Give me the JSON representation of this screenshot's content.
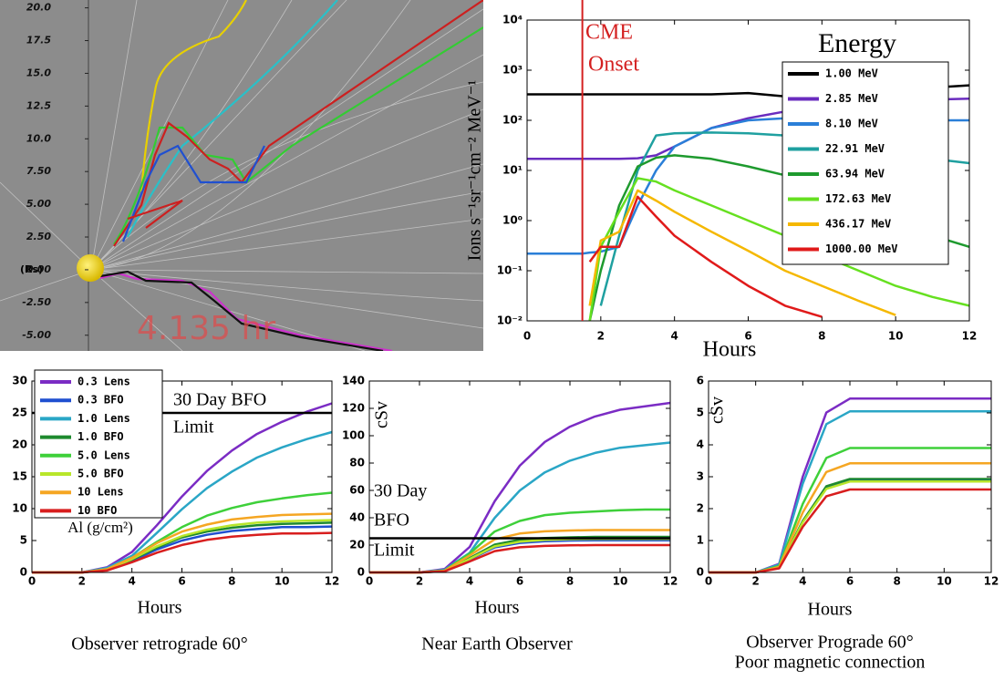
{
  "chart_data": [
    {
      "type": "image",
      "ylabel": "(Rs)",
      "annotation": "4.135 hr",
      "ylim": [
        -6.2,
        20.6
      ],
      "yticks": [
        {
          "value": 20,
          "label": "20.0"
        },
        {
          "value": 17.5,
          "label": "17.5"
        },
        {
          "value": 15,
          "label": "15.0"
        },
        {
          "value": 12.5,
          "label": "12.5"
        },
        {
          "value": 10,
          "label": "10.0"
        },
        {
          "value": 7.5,
          "label": "7.50"
        },
        {
          "value": 5,
          "label": "5.00"
        },
        {
          "value": 2.5,
          "label": "2.50"
        },
        {
          "value": 0,
          "label": "0.00"
        },
        {
          "value": -2.5,
          "label": "-2.50"
        },
        {
          "value": -5,
          "label": "-5.00"
        }
      ]
    },
    {
      "type": "line",
      "log_y": true,
      "xlabel": "Hours",
      "ylabel": "Ions s⁻¹sr⁻¹cm⁻² MeV⁻¹",
      "legend_title": "Energy",
      "legend": "upper right",
      "xlim": [
        0,
        12
      ],
      "xticks": [
        0,
        2,
        4,
        6,
        8,
        10,
        12
      ],
      "ylim": [
        0.01,
        10000
      ],
      "yticks": [
        {
          "value": 0.01,
          "label": "10⁻²"
        },
        {
          "value": 0.1,
          "label": "10⁻¹"
        },
        {
          "value": 1,
          "label": "10⁰"
        },
        {
          "value": 10,
          "label": "10¹"
        },
        {
          "value": 100,
          "label": "10²"
        },
        {
          "value": 1000,
          "label": "10³"
        },
        {
          "value": 10000,
          "label": "10⁴"
        }
      ],
      "vline": {
        "x": 1.5,
        "label": [
          "CME",
          "Onset"
        ],
        "color": "#d42020"
      },
      "x": [
        0,
        1,
        1.5,
        1.7,
        2,
        2.5,
        3,
        3.5,
        4,
        5,
        6,
        7,
        8,
        9,
        10,
        11,
        12
      ],
      "series": [
        {
          "name": "1.00 MeV",
          "color": "#000000",
          "values": [
            330,
            330,
            330,
            330,
            330,
            330,
            330,
            330,
            330,
            330,
            350,
            300,
            320,
            350,
            400,
            450,
            500
          ]
        },
        {
          "name": "2.85 MeV",
          "color": "#6a2cbf",
          "values": [
            17,
            17,
            17,
            17,
            17,
            17,
            17.5,
            20,
            30,
            70,
            110,
            150,
            200,
            230,
            250,
            260,
            270
          ]
        },
        {
          "name": "8.10 MeV",
          "color": "#2a7fd8",
          "values": [
            0.22,
            0.22,
            0.22,
            0.23,
            0.24,
            0.3,
            2,
            10,
            30,
            70,
            100,
            110,
            110,
            110,
            105,
            100,
            100
          ]
        },
        {
          "name": "22.91 MeV",
          "color": "#1fa0a0",
          "values": [
            null,
            null,
            null,
            null,
            0.02,
            0.5,
            10,
            50,
            55,
            57,
            55,
            50,
            40,
            30,
            22,
            17,
            14
          ]
        },
        {
          "name": "63.94 MeV",
          "color": "#1e9a2e",
          "values": [
            null,
            null,
            null,
            0.01,
            0.1,
            2,
            12,
            18,
            20,
            17,
            12,
            8,
            4,
            2,
            1,
            0.5,
            0.3
          ]
        },
        {
          "name": "172.63 MeV",
          "color": "#66e020",
          "values": [
            null,
            null,
            null,
            0.01,
            0.3,
            1.5,
            7,
            6,
            4,
            2,
            1,
            0.5,
            0.2,
            0.1,
            0.05,
            0.03,
            0.02
          ]
        },
        {
          "name": "436.17 MeV",
          "color": "#f5b800",
          "values": [
            null,
            null,
            null,
            0.02,
            0.4,
            0.6,
            4,
            2.5,
            1.5,
            0.6,
            0.25,
            0.1,
            0.05,
            0.025,
            0.013,
            null,
            null
          ]
        },
        {
          "name": "1000.00 MeV",
          "color": "#e01a1a",
          "values": [
            null,
            null,
            null,
            0.15,
            0.3,
            0.3,
            3,
            1.2,
            0.5,
            0.15,
            0.05,
            0.02,
            0.012,
            null,
            null,
            null,
            null
          ]
        }
      ]
    },
    {
      "type": "line",
      "xlabel": "Hours",
      "caption": [
        "Observer retrograde 60°"
      ],
      "legend_title": "Al (g/cm²)",
      "legend": "upper left",
      "xlim": [
        0,
        12
      ],
      "xticks": [
        0,
        2,
        4,
        6,
        8,
        10,
        12
      ],
      "ylim": [
        0,
        30
      ],
      "yticks": [
        0,
        5,
        10,
        15,
        20,
        25,
        30
      ],
      "hline": {
        "y": 25,
        "label": [
          "30 Day BFO",
          "Limit"
        ]
      },
      "x": [
        0,
        2,
        3,
        4,
        5,
        6,
        7,
        8,
        9,
        10,
        11,
        12
      ],
      "series": [
        {
          "name": "0.3 Lens",
          "color": "#7b2cc4",
          "values": [
            0,
            0,
            0.8,
            3.2,
            7.4,
            11.9,
            15.9,
            19.1,
            21.7,
            23.6,
            25.2,
            26.5
          ]
        },
        {
          "name": "0.3 BFO",
          "color": "#1f4fd0",
          "values": [
            0,
            0,
            0.4,
            1.8,
            3.6,
            5.0,
            5.9,
            6.5,
            6.8,
            7.1,
            7.1,
            7.2
          ]
        },
        {
          "name": "1.0 Lens",
          "color": "#2aa6c6",
          "values": [
            0,
            0,
            0.7,
            2.6,
            6.2,
            9.9,
            13.2,
            15.8,
            18.0,
            19.6,
            20.9,
            22
          ]
        },
        {
          "name": "1.0 BFO",
          "color": "#1e8a2e",
          "values": [
            0,
            0,
            0.4,
            2.0,
            3.9,
            5.5,
            6.4,
            7.0,
            7.4,
            7.6,
            7.7,
            7.8
          ]
        },
        {
          "name": "5.0 Lens",
          "color": "#3ed03a",
          "values": [
            0,
            0,
            0.5,
            2.3,
            4.8,
            7.1,
            8.9,
            10.1,
            11.0,
            11.6,
            12.1,
            12.5
          ]
        },
        {
          "name": "5.0 BFO",
          "color": "#b8e62a",
          "values": [
            0,
            0,
            0.4,
            2.1,
            4.1,
            5.7,
            6.7,
            7.4,
            7.8,
            8.0,
            8.1,
            8.2
          ]
        },
        {
          "name": "10 Lens",
          "color": "#f5a623",
          "values": [
            0,
            0,
            0.5,
            2.3,
            4.6,
            6.4,
            7.5,
            8.3,
            8.7,
            9.0,
            9.1,
            9.2
          ]
        },
        {
          "name": "10 BFO",
          "color": "#d81e1e",
          "values": [
            0,
            0,
            0.3,
            1.6,
            3.1,
            4.3,
            5.1,
            5.6,
            5.9,
            6.1,
            6.1,
            6.2
          ]
        }
      ]
    },
    {
      "type": "line",
      "xlabel": "Hours",
      "ylabel": "cSv",
      "caption": [
        "Near Earth Observer"
      ],
      "xlim": [
        0,
        12
      ],
      "xticks": [
        0,
        2,
        4,
        6,
        8,
        10,
        12
      ],
      "ylim": [
        0,
        140
      ],
      "yticks": [
        0,
        20,
        40,
        60,
        80,
        100,
        120,
        140
      ],
      "hline": {
        "y": 25,
        "label": [
          "30 Day",
          "BFO",
          "Limit"
        ]
      },
      "x": [
        0,
        2,
        3,
        4,
        5,
        6,
        7,
        8,
        9,
        10,
        11,
        12
      ],
      "series": [
        {
          "color": "#7b2cc4",
          "values": [
            0,
            0,
            2.5,
            18.6,
            52.1,
            78.1,
            95.5,
            106.6,
            114.1,
            119.0,
            121.5,
            124
          ]
        },
        {
          "color": "#1f4fd0",
          "values": [
            0,
            0,
            0.9,
            9.4,
            18.3,
            21.6,
            22.8,
            23.3,
            23.5,
            23.5,
            23.5,
            23.5
          ]
        },
        {
          "color": "#2aa6c6",
          "values": [
            0,
            0,
            1.9,
            14.3,
            39.9,
            59.9,
            73.2,
            81.7,
            87.4,
            91.2,
            93.1,
            95
          ]
        },
        {
          "color": "#1e8a2e",
          "values": [
            0,
            0,
            1.0,
            10.4,
            20.3,
            23.9,
            25.2,
            25.7,
            26,
            26,
            26,
            26
          ]
        },
        {
          "color": "#3ed03a",
          "values": [
            0,
            0,
            1.4,
            13.8,
            29.9,
            37.7,
            41.9,
            43.7,
            44.6,
            45.5,
            46,
            46
          ]
        },
        {
          "color": "#b8e62a",
          "values": [
            0,
            0,
            1.0,
            9.8,
            19.1,
            22.5,
            23.8,
            24.3,
            24.5,
            24.5,
            24.5,
            24.5
          ]
        },
        {
          "color": "#f5a623",
          "values": [
            0,
            0,
            1.2,
            12.4,
            24.2,
            28.5,
            30.1,
            30.7,
            31,
            31,
            31,
            31
          ]
        },
        {
          "color": "#d81e1e",
          "values": [
            0,
            0,
            0.8,
            8.0,
            15.6,
            18.4,
            19.4,
            19.8,
            20,
            20,
            20,
            20
          ]
        }
      ]
    },
    {
      "type": "line",
      "xlabel": "Hours",
      "ylabel": "cSv",
      "caption": [
        "Observer Prograde 60°",
        "Poor magnetic connection"
      ],
      "xlim": [
        0,
        12
      ],
      "xticks": [
        0,
        2,
        4,
        6,
        8,
        10,
        12
      ],
      "ylim": [
        0,
        6
      ],
      "yticks": [
        0,
        1,
        2,
        3,
        4,
        5,
        6
      ],
      "x": [
        0,
        2,
        3,
        4,
        5,
        6,
        7,
        8,
        9,
        10,
        11,
        12
      ],
      "series": [
        {
          "color": "#7b2cc4",
          "values": [
            0,
            0,
            0.27,
            3.0,
            5.01,
            5.45,
            5.45,
            5.45,
            5.45,
            5.45,
            5.45,
            5.45
          ]
        },
        {
          "color": "#1f4fd0",
          "values": [
            0,
            0,
            0.15,
            1.6,
            2.67,
            2.9,
            2.9,
            2.9,
            2.9,
            2.9,
            2.9,
            2.9
          ]
        },
        {
          "color": "#2aa6c6",
          "values": [
            0,
            0,
            0.25,
            2.78,
            4.65,
            5.05,
            5.05,
            5.05,
            5.05,
            5.05,
            5.05,
            5.05
          ]
        },
        {
          "color": "#1e8a2e",
          "values": [
            0,
            0,
            0.15,
            1.61,
            2.7,
            2.93,
            2.93,
            2.93,
            2.93,
            2.93,
            2.93,
            2.93
          ]
        },
        {
          "color": "#3ed03a",
          "values": [
            0,
            0,
            0.2,
            2.15,
            3.59,
            3.9,
            3.9,
            3.9,
            3.9,
            3.9,
            3.9,
            3.9
          ]
        },
        {
          "color": "#b8e62a",
          "values": [
            0,
            0,
            0.14,
            1.57,
            2.62,
            2.85,
            2.85,
            2.85,
            2.85,
            2.85,
            2.85,
            2.85
          ]
        },
        {
          "color": "#f5a623",
          "values": [
            0,
            0,
            0.17,
            1.88,
            3.15,
            3.42,
            3.42,
            3.42,
            3.42,
            3.42,
            3.42,
            3.42
          ]
        },
        {
          "color": "#d81e1e",
          "values": [
            0,
            0,
            0.13,
            1.43,
            2.39,
            2.6,
            2.6,
            2.6,
            2.6,
            2.6,
            2.6,
            2.6
          ]
        }
      ]
    }
  ]
}
